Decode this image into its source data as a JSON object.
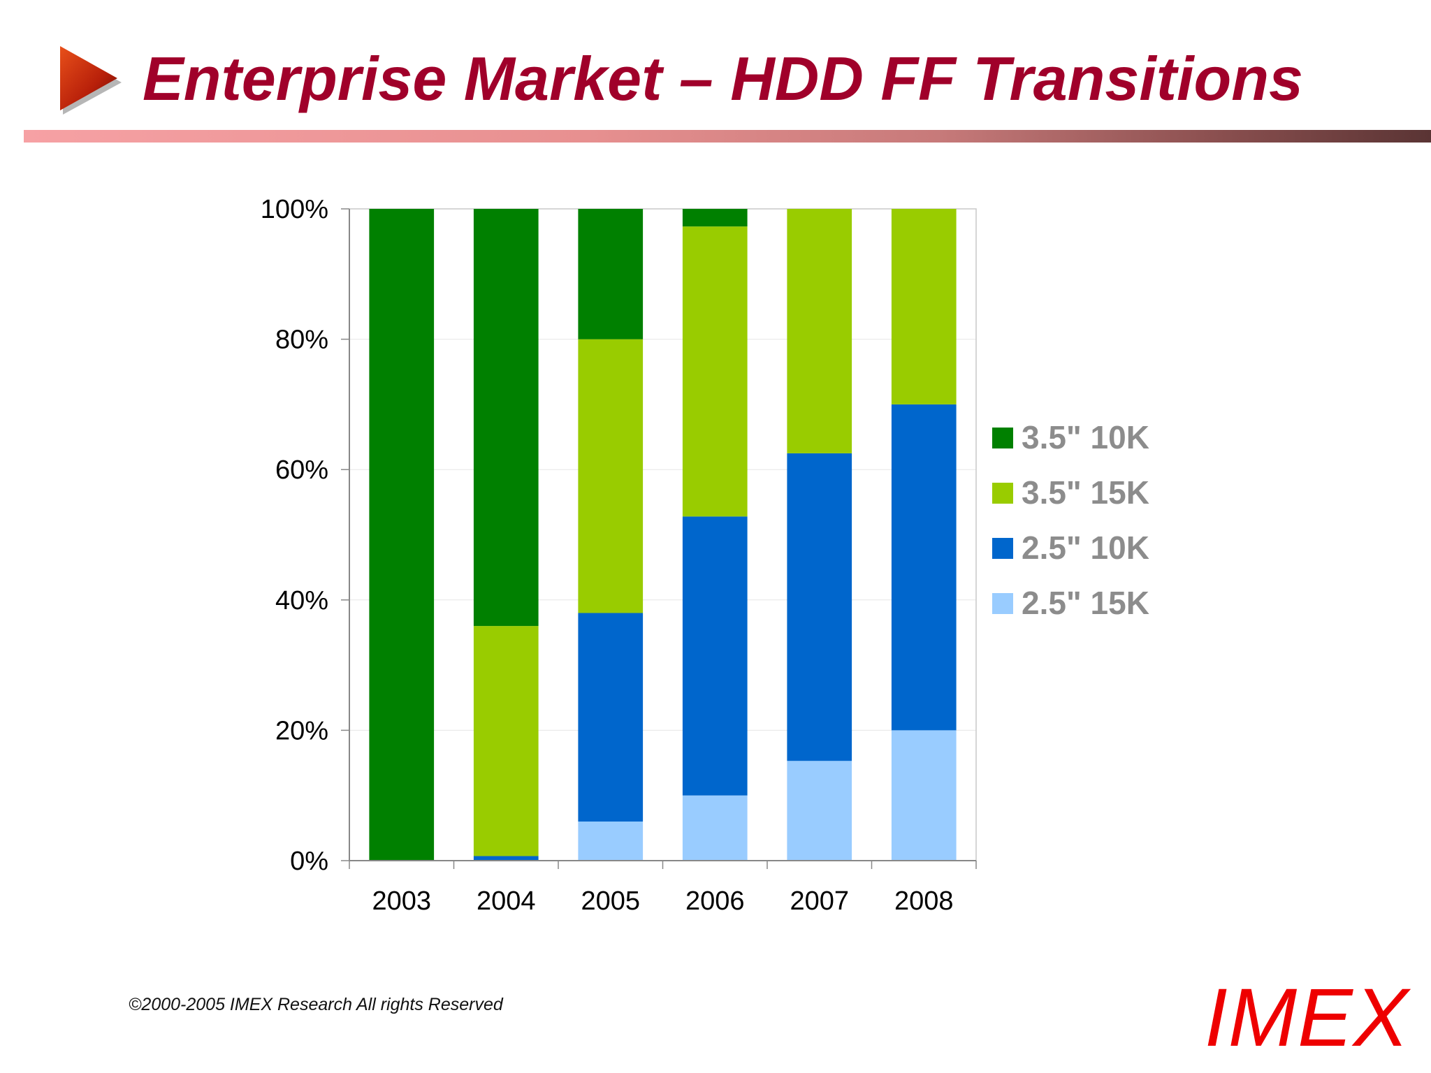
{
  "slide": {
    "title": "Enterprise Market – HDD FF Transitions",
    "footer": {
      "copyright": "©2000-2005  IMEX Research All rights Reserved",
      "logo_text": "IMEX"
    },
    "colors": {
      "title": "#a0002a",
      "logo": "#ee0000",
      "bullet_arrow": "#c0280a"
    },
    "icons": [
      "play-arrow-icon"
    ]
  },
  "chart_data": {
    "type": "bar",
    "stacked": true,
    "percent_stacked": true,
    "title": "",
    "xlabel": "",
    "ylabel": "",
    "categories": [
      "2003",
      "2004",
      "2005",
      "2006",
      "2007",
      "2008"
    ],
    "y_ticks": [
      "0%",
      "20%",
      "40%",
      "60%",
      "80%",
      "100%"
    ],
    "ylim": [
      0,
      100
    ],
    "grid": true,
    "legend_position": "right",
    "series": [
      {
        "name": "2.5\" 15K",
        "color": "#99ccff",
        "values": [
          0,
          0,
          6,
          10,
          15.3,
          20
        ]
      },
      {
        "name": "2.5\" 10K",
        "color": "#0066cc",
        "values": [
          0,
          0.7,
          32,
          42.8,
          47.2,
          50
        ]
      },
      {
        "name": "3.5\" 15K",
        "color": "#99cc00",
        "values": [
          0,
          35.3,
          42,
          44.5,
          37.5,
          30
        ]
      },
      {
        "name": "3.5\" 10K",
        "color": "#008000",
        "values": [
          100,
          64,
          20,
          2.7,
          0,
          0
        ]
      }
    ],
    "legend_order": [
      "3.5\" 10K",
      "3.5\" 15K",
      "2.5\" 10K",
      "2.5\" 15K"
    ]
  }
}
